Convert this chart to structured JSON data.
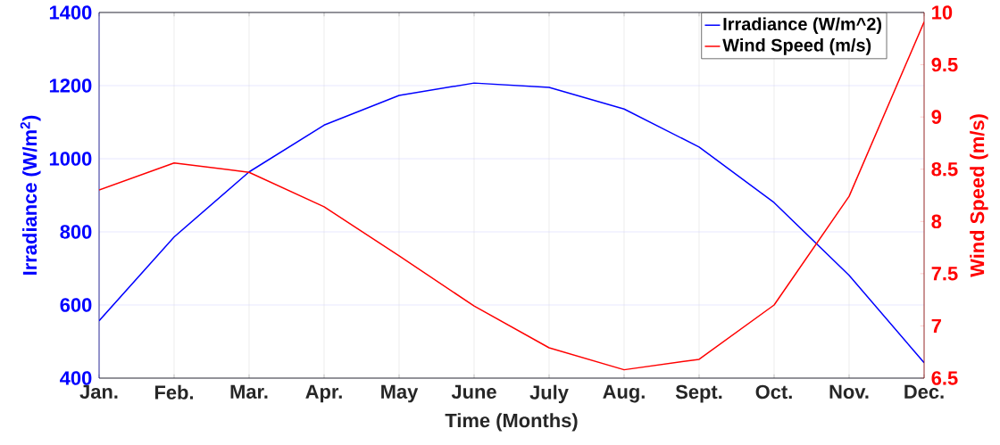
{
  "chart_data": {
    "type": "line",
    "xlabel": "Time (Months)",
    "ylabel": "Irradiance (W/m$^{2}$)",
    "y2label": "Wind Speed (m/s)",
    "categories": [
      "Jan.",
      "Feb.",
      "Mar.",
      "Apr.",
      "May",
      "June",
      "July",
      "Aug.",
      "Sept.",
      "Oct.",
      "Nov.",
      "Dec."
    ],
    "series": [
      {
        "name": "Irradiance (W/m^2)",
        "color": "#0000ff",
        "values": [
          557,
          786,
          964,
          1092,
          1173,
          1207,
          1195,
          1136,
          1032,
          880,
          681,
          442
        ]
      },
      {
        "name": "Wind Speed (m/s)",
        "color": "#ff0000",
        "axis": "y2",
        "values": [
          8.3,
          8.56,
          8.47,
          8.14,
          7.67,
          7.19,
          6.79,
          6.58,
          6.68,
          7.2,
          8.24,
          9.91
        ]
      }
    ],
    "ylim": [
      400,
      1400
    ],
    "yticks": [
      400,
      600,
      800,
      1000,
      1200,
      1400
    ],
    "y2lim": [
      6.5,
      10
    ],
    "y2ticks": [
      6.5,
      7,
      7.5,
      8,
      8.5,
      9,
      9.5,
      10
    ],
    "grid": true,
    "legend": "top right",
    "marker": "none",
    "line_style": "solid"
  }
}
